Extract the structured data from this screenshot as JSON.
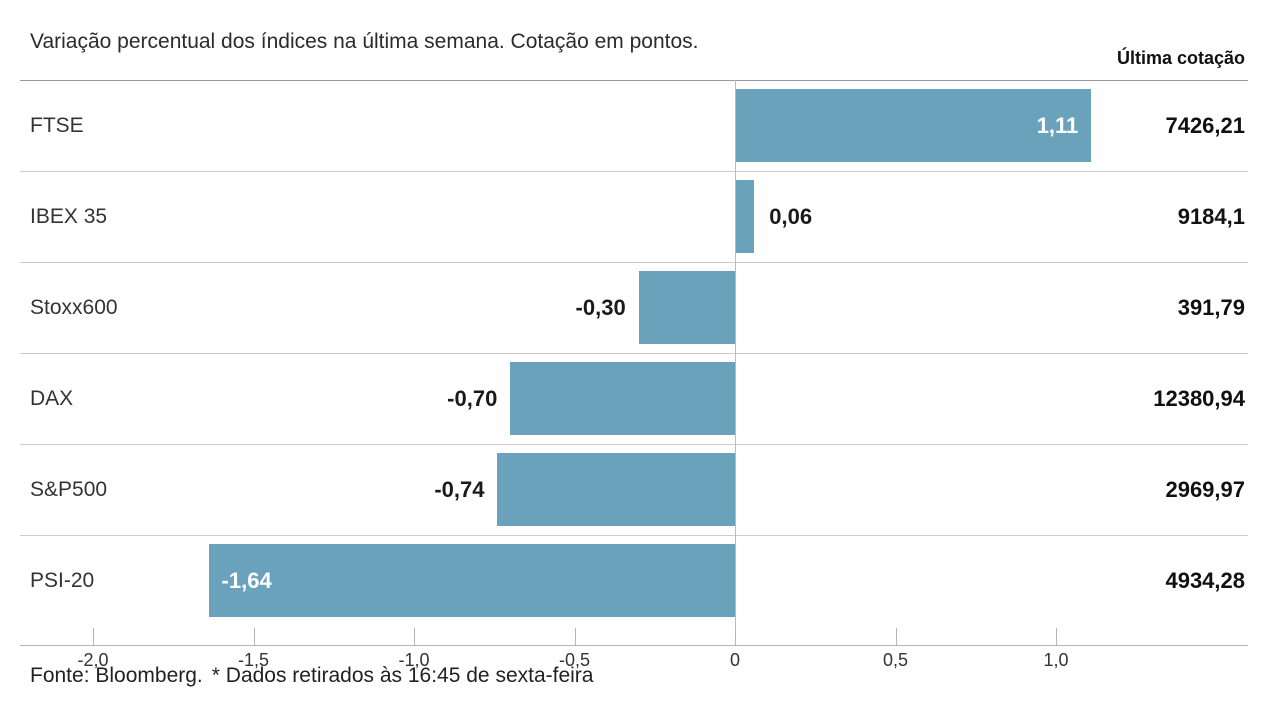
{
  "chart_data": {
    "type": "bar",
    "orientation": "horizontal",
    "title": "Variação percentual dos índices na última semana. Cotação em pontos.",
    "value_column_label": "Última cotação",
    "categories": [
      "FTSE",
      "IBEX 35",
      "Stoxx600",
      "DAX",
      "S&P500",
      "PSI-20"
    ],
    "values": [
      1.11,
      0.06,
      -0.3,
      -0.7,
      -0.74,
      -1.64
    ],
    "value_labels": [
      "1,11",
      "0,06",
      "-0,30",
      "-0,70",
      "-0,74",
      "-1,64"
    ],
    "last_quotes": [
      "7426,21",
      "9184,1",
      "391,79",
      "12380,94",
      "2969,97",
      "4934,28"
    ],
    "x_ticks": [
      -2.0,
      -1.5,
      -1.0,
      -0.5,
      0,
      0.5,
      1.0
    ],
    "x_tick_labels": [
      "-2,0",
      "-1,5",
      "-1,0",
      "-0,5",
      "0",
      "0,5",
      "1,0"
    ],
    "xlim": [
      -2.23,
      1.6
    ],
    "bar_color": "#6aa2bc",
    "grid": false,
    "legend": null
  },
  "footer": {
    "source": "Fonte: Bloomberg.",
    "note": "* Dados retirados às 16:45 de sexta-feira"
  }
}
